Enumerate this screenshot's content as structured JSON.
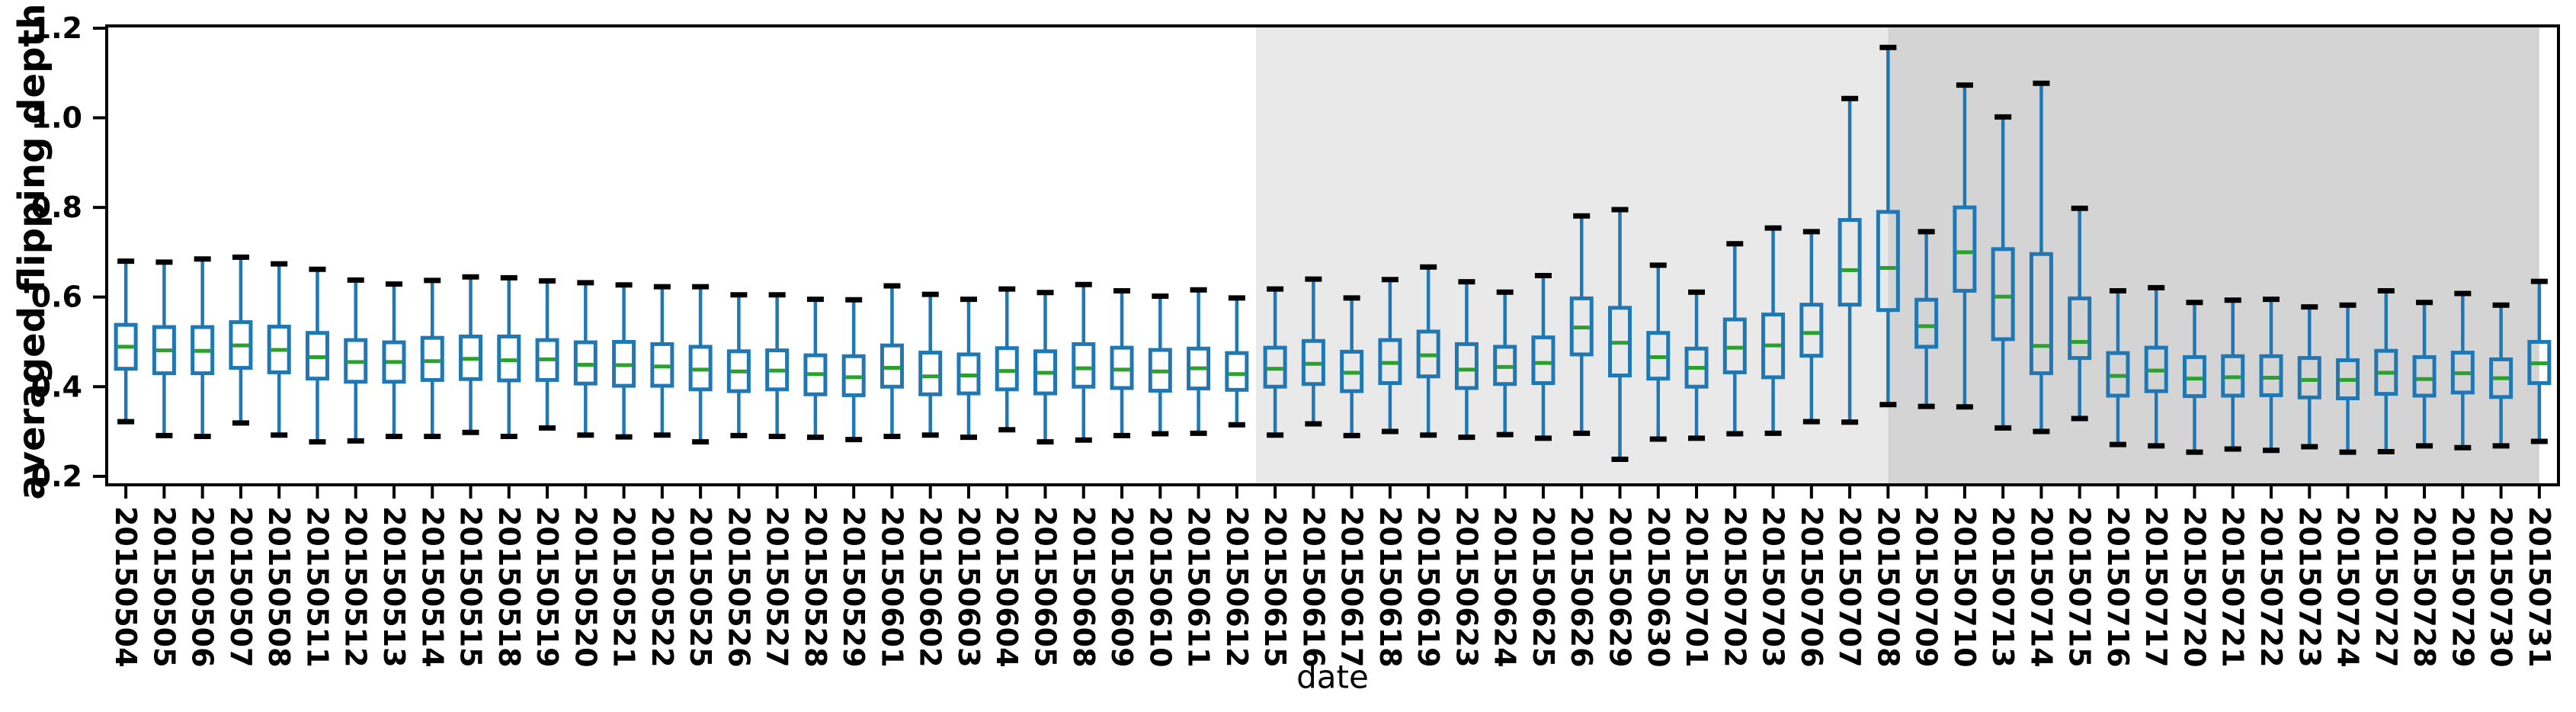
{
  "figure": {
    "background": "#ffffff"
  },
  "chart_data": {
    "type": "boxplot",
    "title": "",
    "xlabel": "date",
    "ylabel": "averaged flipping depth",
    "ylim": [
      0.181,
      1.205
    ],
    "yticks": [
      0.2,
      0.4,
      0.6,
      0.8,
      1.0,
      1.2
    ],
    "grid": false,
    "legend": "none",
    "colors": {
      "box": "#1f77b4",
      "whisker": "#1f77b4",
      "median": "#2ca02c",
      "cap": "#000000",
      "axis": "#000000",
      "light_band": "#e9e9e9",
      "dark_band": "#d4d4d4"
    },
    "shaded_regions": [
      {
        "name": "light-gray-band",
        "from_index": 29.5,
        "to_index": 46.0,
        "color": "#e9e9e9"
      },
      {
        "name": "dark-gray-band",
        "from_index": 46.0,
        "to_index": 63.0,
        "color": "#d4d4d4"
      }
    ],
    "categories": [
      "20150504",
      "20150505",
      "20150506",
      "20150507",
      "20150508",
      "20150511",
      "20150512",
      "20150513",
      "20150514",
      "20150515",
      "20150518",
      "20150519",
      "20150520",
      "20150521",
      "20150522",
      "20150525",
      "20150526",
      "20150527",
      "20150528",
      "20150529",
      "20150601",
      "20150602",
      "20150603",
      "20150604",
      "20150605",
      "20150608",
      "20150609",
      "20150610",
      "20150611",
      "20150612",
      "20150615",
      "20150616",
      "20150617",
      "20150618",
      "20150619",
      "20150623",
      "20150624",
      "20150625",
      "20150626",
      "20150629",
      "20150630",
      "20150701",
      "20150702",
      "20150703",
      "20150706",
      "20150707",
      "20150708",
      "20150709",
      "20150710",
      "20150713",
      "20150714",
      "20150715",
      "20150716",
      "20150717",
      "20150720",
      "20150721",
      "20150722",
      "20150723",
      "20150724",
      "20150727",
      "20150728",
      "20150729",
      "20150730",
      "20150731"
    ],
    "boxes": [
      {
        "whislo": 0.322,
        "q1": 0.44,
        "med": 0.489,
        "q3": 0.538,
        "whishi": 0.68
      },
      {
        "whislo": 0.291,
        "q1": 0.43,
        "med": 0.481,
        "q3": 0.533,
        "whishi": 0.678
      },
      {
        "whislo": 0.289,
        "q1": 0.43,
        "med": 0.48,
        "q3": 0.533,
        "whishi": 0.685
      },
      {
        "whislo": 0.319,
        "q1": 0.442,
        "med": 0.492,
        "q3": 0.544,
        "whishi": 0.689
      },
      {
        "whislo": 0.292,
        "q1": 0.432,
        "med": 0.482,
        "q3": 0.534,
        "whishi": 0.674
      },
      {
        "whislo": 0.277,
        "q1": 0.418,
        "med": 0.466,
        "q3": 0.52,
        "whishi": 0.662
      },
      {
        "whislo": 0.279,
        "q1": 0.411,
        "med": 0.455,
        "q3": 0.504,
        "whishi": 0.638
      },
      {
        "whislo": 0.289,
        "q1": 0.411,
        "med": 0.455,
        "q3": 0.499,
        "whishi": 0.629
      },
      {
        "whislo": 0.289,
        "q1": 0.415,
        "med": 0.457,
        "q3": 0.509,
        "whishi": 0.637
      },
      {
        "whislo": 0.298,
        "q1": 0.417,
        "med": 0.462,
        "q3": 0.512,
        "whishi": 0.645
      },
      {
        "whislo": 0.289,
        "q1": 0.414,
        "med": 0.459,
        "q3": 0.512,
        "whishi": 0.643
      },
      {
        "whislo": 0.308,
        "q1": 0.415,
        "med": 0.461,
        "q3": 0.504,
        "whishi": 0.636
      },
      {
        "whislo": 0.292,
        "q1": 0.407,
        "med": 0.449,
        "q3": 0.499,
        "whishi": 0.632
      },
      {
        "whislo": 0.288,
        "q1": 0.402,
        "med": 0.448,
        "q3": 0.5,
        "whishi": 0.627
      },
      {
        "whislo": 0.292,
        "q1": 0.402,
        "med": 0.445,
        "q3": 0.495,
        "whishi": 0.623
      },
      {
        "whislo": 0.277,
        "q1": 0.394,
        "med": 0.438,
        "q3": 0.489,
        "whishi": 0.623
      },
      {
        "whislo": 0.291,
        "q1": 0.39,
        "med": 0.434,
        "q3": 0.479,
        "whishi": 0.605
      },
      {
        "whislo": 0.289,
        "q1": 0.394,
        "med": 0.436,
        "q3": 0.481,
        "whishi": 0.605
      },
      {
        "whislo": 0.287,
        "q1": 0.383,
        "med": 0.428,
        "q3": 0.47,
        "whishi": 0.595
      },
      {
        "whislo": 0.282,
        "q1": 0.381,
        "med": 0.421,
        "q3": 0.468,
        "whishi": 0.594
      },
      {
        "whislo": 0.289,
        "q1": 0.4,
        "med": 0.442,
        "q3": 0.492,
        "whishi": 0.625
      },
      {
        "whislo": 0.292,
        "q1": 0.383,
        "med": 0.423,
        "q3": 0.476,
        "whishi": 0.606
      },
      {
        "whislo": 0.287,
        "q1": 0.385,
        "med": 0.425,
        "q3": 0.472,
        "whishi": 0.595
      },
      {
        "whislo": 0.304,
        "q1": 0.394,
        "med": 0.435,
        "q3": 0.486,
        "whishi": 0.618
      },
      {
        "whislo": 0.277,
        "q1": 0.385,
        "med": 0.431,
        "q3": 0.479,
        "whishi": 0.61
      },
      {
        "whislo": 0.281,
        "q1": 0.4,
        "med": 0.441,
        "q3": 0.495,
        "whishi": 0.628
      },
      {
        "whislo": 0.291,
        "q1": 0.397,
        "med": 0.438,
        "q3": 0.487,
        "whishi": 0.614
      },
      {
        "whislo": 0.295,
        "q1": 0.391,
        "med": 0.434,
        "q3": 0.482,
        "whishi": 0.602
      },
      {
        "whislo": 0.296,
        "q1": 0.396,
        "med": 0.441,
        "q3": 0.485,
        "whishi": 0.616
      },
      {
        "whislo": 0.315,
        "q1": 0.393,
        "med": 0.428,
        "q3": 0.475,
        "whishi": 0.598
      },
      {
        "whislo": 0.292,
        "q1": 0.4,
        "med": 0.44,
        "q3": 0.487,
        "whishi": 0.618
      },
      {
        "whislo": 0.317,
        "q1": 0.406,
        "med": 0.451,
        "q3": 0.502,
        "whishi": 0.64
      },
      {
        "whislo": 0.291,
        "q1": 0.39,
        "med": 0.431,
        "q3": 0.478,
        "whishi": 0.598
      },
      {
        "whislo": 0.3,
        "q1": 0.408,
        "med": 0.453,
        "q3": 0.504,
        "whishi": 0.639
      },
      {
        "whislo": 0.292,
        "q1": 0.423,
        "med": 0.47,
        "q3": 0.523,
        "whishi": 0.667
      },
      {
        "whislo": 0.287,
        "q1": 0.397,
        "med": 0.438,
        "q3": 0.495,
        "whishi": 0.634
      },
      {
        "whislo": 0.293,
        "q1": 0.406,
        "med": 0.444,
        "q3": 0.489,
        "whishi": 0.611
      },
      {
        "whislo": 0.285,
        "q1": 0.408,
        "med": 0.453,
        "q3": 0.51,
        "whishi": 0.648
      },
      {
        "whislo": 0.296,
        "q1": 0.472,
        "med": 0.532,
        "q3": 0.597,
        "whishi": 0.781
      },
      {
        "whislo": 0.238,
        "q1": 0.425,
        "med": 0.498,
        "q3": 0.576,
        "whishi": 0.795
      },
      {
        "whislo": 0.283,
        "q1": 0.418,
        "med": 0.466,
        "q3": 0.52,
        "whishi": 0.671
      },
      {
        "whislo": 0.285,
        "q1": 0.4,
        "med": 0.442,
        "q3": 0.485,
        "whishi": 0.611
      },
      {
        "whislo": 0.295,
        "q1": 0.432,
        "med": 0.487,
        "q3": 0.55,
        "whishi": 0.719
      },
      {
        "whislo": 0.296,
        "q1": 0.421,
        "med": 0.492,
        "q3": 0.561,
        "whishi": 0.754
      },
      {
        "whislo": 0.322,
        "q1": 0.469,
        "med": 0.52,
        "q3": 0.583,
        "whishi": 0.746
      },
      {
        "whislo": 0.321,
        "q1": 0.583,
        "med": 0.66,
        "q3": 0.772,
        "whishi": 1.043
      },
      {
        "whislo": 0.36,
        "q1": 0.571,
        "med": 0.665,
        "q3": 0.79,
        "whishi": 1.157
      },
      {
        "whislo": 0.356,
        "q1": 0.489,
        "med": 0.535,
        "q3": 0.594,
        "whishi": 0.746
      },
      {
        "whislo": 0.355,
        "q1": 0.614,
        "med": 0.7,
        "q3": 0.8,
        "whishi": 1.073
      },
      {
        "whislo": 0.308,
        "q1": 0.506,
        "med": 0.601,
        "q3": 0.707,
        "whishi": 1.002
      },
      {
        "whislo": 0.3,
        "q1": 0.43,
        "med": 0.491,
        "q3": 0.696,
        "whishi": 1.077
      },
      {
        "whislo": 0.329,
        "q1": 0.464,
        "med": 0.5,
        "q3": 0.597,
        "whishi": 0.798
      },
      {
        "whislo": 0.271,
        "q1": 0.38,
        "med": 0.424,
        "q3": 0.475,
        "whishi": 0.614
      },
      {
        "whislo": 0.268,
        "q1": 0.39,
        "med": 0.436,
        "q3": 0.487,
        "whishi": 0.621
      },
      {
        "whislo": 0.254,
        "q1": 0.379,
        "med": 0.418,
        "q3": 0.466,
        "whishi": 0.588
      },
      {
        "whislo": 0.261,
        "q1": 0.38,
        "med": 0.421,
        "q3": 0.468,
        "whishi": 0.593
      },
      {
        "whislo": 0.258,
        "q1": 0.381,
        "med": 0.42,
        "q3": 0.468,
        "whishi": 0.595
      },
      {
        "whislo": 0.266,
        "q1": 0.376,
        "med": 0.415,
        "q3": 0.464,
        "whishi": 0.578
      },
      {
        "whislo": 0.254,
        "q1": 0.374,
        "med": 0.415,
        "q3": 0.459,
        "whishi": 0.582
      },
      {
        "whislo": 0.255,
        "q1": 0.384,
        "med": 0.431,
        "q3": 0.48,
        "whishi": 0.614
      },
      {
        "whislo": 0.268,
        "q1": 0.38,
        "med": 0.417,
        "q3": 0.466,
        "whishi": 0.588
      },
      {
        "whislo": 0.264,
        "q1": 0.387,
        "med": 0.43,
        "q3": 0.476,
        "whishi": 0.608
      },
      {
        "whislo": 0.268,
        "q1": 0.377,
        "med": 0.419,
        "q3": 0.461,
        "whishi": 0.582
      },
      {
        "whislo": 0.278,
        "q1": 0.408,
        "med": 0.452,
        "q3": 0.5,
        "whishi": 0.635
      }
    ]
  }
}
